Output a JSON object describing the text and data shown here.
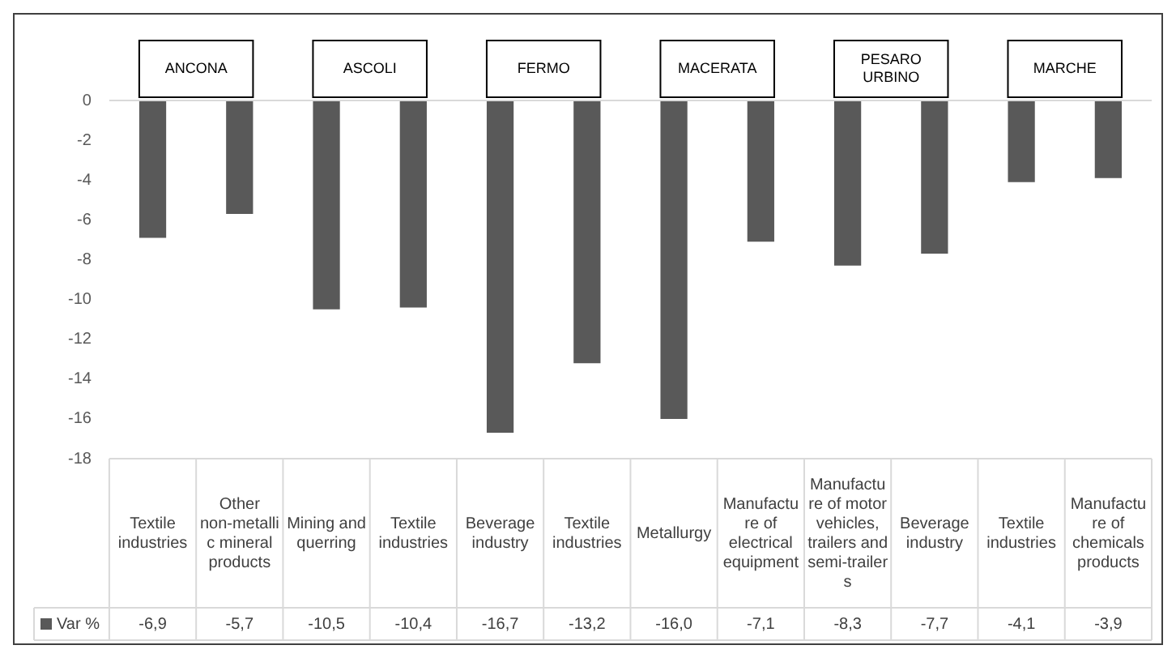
{
  "chart_data": {
    "type": "bar",
    "categories": [
      "Textile industries",
      "Other non-metallic mineral products",
      "Mining and querring",
      "Textile industries",
      "Beverage industry",
      "Textile industries",
      "Metallurgy",
      "Manufacture of electrical equipment",
      "Manufacture of motor vehicles, trailers and semi-trailers",
      "Beverage industry",
      "Textile industries",
      "Manufacture of chemicals products"
    ],
    "series": [
      {
        "name": "Var %",
        "color": "#595959",
        "values": [
          -6.9,
          -5.7,
          -10.5,
          -10.4,
          -16.7,
          -13.2,
          -16.0,
          -7.1,
          -8.3,
          -7.7,
          -4.1,
          -3.9
        ],
        "value_labels": [
          "-6,9",
          "-5,7",
          "-10,5",
          "-10,4",
          "-16,7",
          "-13,2",
          "-16,0",
          "-7,1",
          "-8,3",
          "-7,7",
          "-4,1",
          "-3,9"
        ]
      }
    ],
    "annotations": [
      "ANCONA",
      "ASCOLI",
      "FERMO",
      "MACERATA",
      "PESARO URBINO",
      "MARCHE"
    ],
    "ylim": [
      -18,
      0
    ],
    "yticks": [
      0,
      -2,
      -4,
      -6,
      -8,
      -10,
      -12,
      -14,
      -16,
      -18
    ],
    "grid": false,
    "legend": "bottom left"
  }
}
